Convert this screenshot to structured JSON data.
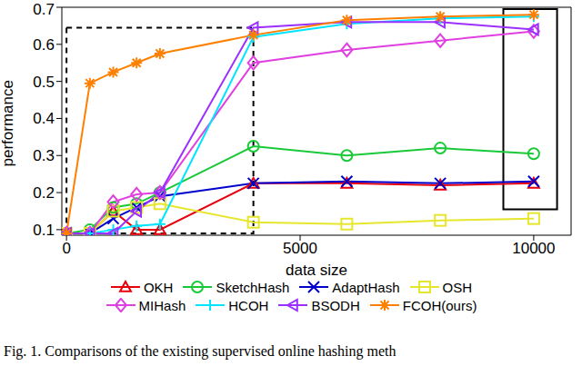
{
  "chart_data": {
    "type": "line",
    "x_label": "data size",
    "y_label": "performance",
    "caption": "Fig. 1. Comparisons of the existing supervised online hashing meth",
    "x": [
      0,
      500,
      1000,
      1500,
      2000,
      4000,
      6000,
      8000,
      10000
    ],
    "xlim": [
      -100,
      10800
    ],
    "xticks": [
      0,
      5000,
      10000
    ],
    "ylim": [
      0.085,
      0.7
    ],
    "yticks": [
      0.1,
      0.2,
      0.3,
      0.4,
      0.5,
      0.6,
      0.7
    ],
    "grid": false,
    "legend": "bottom",
    "series": [
      {
        "name": "OKH",
        "color": "#e8000b",
        "marker": "triangle",
        "values": [
          0.09,
          0.09,
          0.15,
          0.1,
          0.1,
          0.225,
          0.225,
          0.22,
          0.225
        ]
      },
      {
        "name": "SketchHash",
        "color": "#1ac938",
        "marker": "circle",
        "values": [
          0.09,
          0.1,
          0.16,
          0.17,
          0.2,
          0.325,
          0.3,
          0.32,
          0.305
        ]
      },
      {
        "name": "AdaptHash",
        "color": "#0000cc",
        "marker": "x",
        "values": [
          0.09,
          0.09,
          0.13,
          0.16,
          0.19,
          0.225,
          0.23,
          0.225,
          0.23
        ]
      },
      {
        "name": "OSH",
        "color": "#e6e62e",
        "marker": "square",
        "values": [
          0.09,
          0.09,
          0.15,
          0.16,
          0.17,
          0.12,
          0.115,
          0.125,
          0.13
        ]
      },
      {
        "name": "MIHash",
        "color": "#e040e0",
        "marker": "diamond",
        "values": [
          0.09,
          0.09,
          0.175,
          0.195,
          0.2,
          0.55,
          0.585,
          0.61,
          0.635
        ]
      },
      {
        "name": "HCOH",
        "color": "#00e5ff",
        "marker": "plus",
        "values": [
          0.09,
          0.09,
          0.1,
          0.11,
          0.115,
          0.62,
          0.655,
          0.67,
          0.675
        ]
      },
      {
        "name": "BSODH",
        "color": "#9b30ff",
        "marker": "triangle-left",
        "values": [
          0.09,
          0.09,
          0.09,
          0.15,
          0.2,
          0.645,
          0.66,
          0.66,
          0.64
        ]
      },
      {
        "name": "FCOH(ours)",
        "color": "#ff8000",
        "marker": "star",
        "values": [
          0.09,
          0.495,
          0.525,
          0.55,
          0.575,
          0.625,
          0.665,
          0.675,
          0.68
        ]
      }
    ],
    "regions": [
      {
        "x": [
          0,
          4000
        ],
        "y": [
          0.09,
          0.645
        ],
        "line_style": "dashed"
      },
      {
        "x": [
          9350,
          10500
        ],
        "y": [
          0.155,
          0.695
        ],
        "line_style": "solid"
      }
    ]
  }
}
